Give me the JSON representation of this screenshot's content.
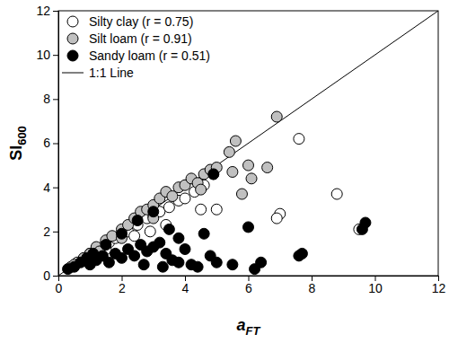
{
  "chart_data": {
    "type": "scatter",
    "xlabel": "aFT",
    "ylabel": "SI600",
    "xlim": [
      0,
      12
    ],
    "ylim": [
      0,
      12
    ],
    "xticks": [
      0,
      2,
      4,
      6,
      8,
      10,
      12
    ],
    "yticks": [
      0,
      2,
      4,
      6,
      8,
      10,
      12
    ],
    "legend": "upper left",
    "series": [
      {
        "name": "Silty clay (r = 0.75)",
        "color": "#ffffff",
        "marker": "circle",
        "type": "scatter",
        "x": [
          0.4,
          0.6,
          0.8,
          1.0,
          1.2,
          1.4,
          1.6,
          1.8,
          2.0,
          2.2,
          2.5,
          2.8,
          3.0,
          3.2,
          3.5,
          3.8,
          4.0,
          4.3,
          4.6,
          4.9,
          1.5,
          2.4,
          3.4,
          5.0,
          7.6,
          8.8,
          9.5,
          7.0,
          6.9,
          2.9,
          4.5
        ],
        "values": [
          0.4,
          0.6,
          0.7,
          1.0,
          1.1,
          1.3,
          1.5,
          1.7,
          1.9,
          2.0,
          2.3,
          2.6,
          2.7,
          2.9,
          3.1,
          3.4,
          3.5,
          3.8,
          4.1,
          4.6,
          1.2,
          1.8,
          2.3,
          3.0,
          6.2,
          3.7,
          2.1,
          2.8,
          2.6,
          2.0,
          3.0
        ]
      },
      {
        "name": "Silt loam (r = 0.91)",
        "color": "#c0c0c0",
        "marker": "circle",
        "type": "scatter",
        "x": [
          0.5,
          0.8,
          1.0,
          1.2,
          1.5,
          1.7,
          2.0,
          2.2,
          2.4,
          2.6,
          2.8,
          3.0,
          3.2,
          3.4,
          3.6,
          3.8,
          4.0,
          4.2,
          4.4,
          4.6,
          4.8,
          5.0,
          5.4,
          5.6,
          5.5,
          6.0,
          6.6,
          6.9,
          5.8,
          4.5,
          3.0,
          2.0,
          1.3,
          6.1
        ],
        "values": [
          0.5,
          0.8,
          1.0,
          1.3,
          1.6,
          1.8,
          2.1,
          2.3,
          2.6,
          2.9,
          3.0,
          3.2,
          3.5,
          3.8,
          3.6,
          4.0,
          4.1,
          4.4,
          4.2,
          4.6,
          4.8,
          4.9,
          5.6,
          6.1,
          4.7,
          5.0,
          4.9,
          7.2,
          3.7,
          3.9,
          2.6,
          1.7,
          1.1,
          4.4
        ]
      },
      {
        "name": "Sandy loam (r = 0.51)",
        "color": "#000000",
        "marker": "circle",
        "type": "scatter",
        "x": [
          0.3,
          0.5,
          0.7,
          0.9,
          1.0,
          1.2,
          1.4,
          1.6,
          1.8,
          2.0,
          2.2,
          2.4,
          2.6,
          2.8,
          3.0,
          3.2,
          3.4,
          3.6,
          3.8,
          4.0,
          4.2,
          4.4,
          4.6,
          4.8,
          5.0,
          5.5,
          6.0,
          6.2,
          6.4,
          7.7,
          7.6,
          9.6,
          9.7,
          3.0,
          2.5,
          3.5,
          4.9,
          2.0,
          1.5,
          1.1,
          3.8,
          2.7,
          3.3
        ],
        "values": [
          0.3,
          0.4,
          0.6,
          0.8,
          0.5,
          0.7,
          0.9,
          0.6,
          1.0,
          0.8,
          1.2,
          0.9,
          1.4,
          1.1,
          1.3,
          1.5,
          1.0,
          0.7,
          0.6,
          1.2,
          0.5,
          0.4,
          1.9,
          0.9,
          0.6,
          0.5,
          2.2,
          0.3,
          0.6,
          1.0,
          0.9,
          2.1,
          2.4,
          2.9,
          2.5,
          2.1,
          4.6,
          1.9,
          1.4,
          1.0,
          1.7,
          0.5,
          0.4
        ]
      },
      {
        "name": "1:1 Line",
        "color": "#000000",
        "type": "line",
        "line_style": "solid",
        "x": [
          0,
          12
        ],
        "values": [
          0,
          12
        ]
      }
    ]
  }
}
